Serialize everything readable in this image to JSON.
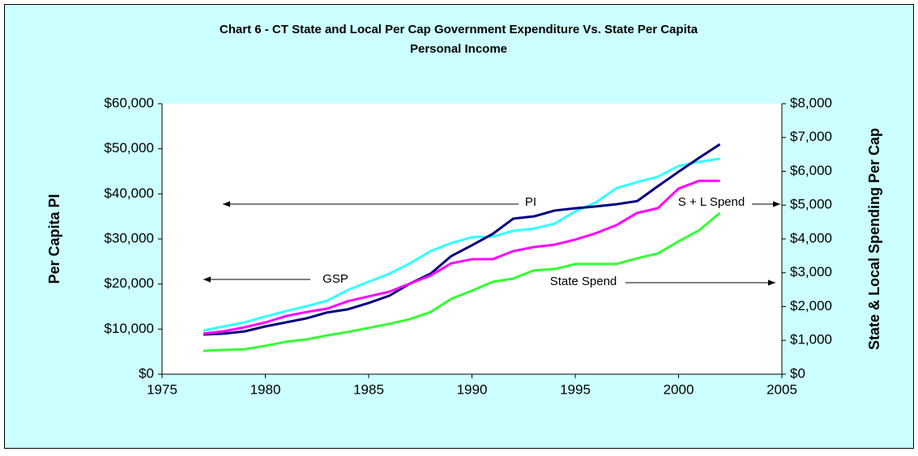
{
  "chart_data": {
    "type": "line",
    "title": [
      "Chart 6 - CT State and Local Per Cap Government Expenditure Vs. State Per Capita",
      "Personal Income"
    ],
    "y_label": "Per Capita PI",
    "y2_label": "State & Local Spending Per Cap",
    "x": [
      1977,
      1978,
      1979,
      1980,
      1981,
      1982,
      1983,
      1984,
      1985,
      1986,
      1987,
      1988,
      1989,
      1990,
      1991,
      1992,
      1993,
      1994,
      1995,
      1996,
      1997,
      1998,
      1999,
      2000,
      2001,
      2002
    ],
    "xlim": [
      1975,
      2005
    ],
    "xticks": [
      1975,
      1980,
      1985,
      1990,
      1995,
      2000,
      2005
    ],
    "ylim": [
      0,
      60000
    ],
    "yticks": [
      {
        "value": 0,
        "label": "$0"
      },
      {
        "value": 10000,
        "label": "$10,000"
      },
      {
        "value": 20000,
        "label": "$20,000"
      },
      {
        "value": 30000,
        "label": "$30,000"
      },
      {
        "value": 40000,
        "label": "$40,000"
      },
      {
        "value": 50000,
        "label": "$50,000"
      },
      {
        "value": 60000,
        "label": "$60,000"
      }
    ],
    "y2lim": [
      0,
      8000
    ],
    "y2ticks": [
      {
        "value": 0,
        "label": "$0"
      },
      {
        "value": 1000,
        "label": "$1,000"
      },
      {
        "value": 2000,
        "label": "$2,000"
      },
      {
        "value": 3000,
        "label": "$3,000"
      },
      {
        "value": 4000,
        "label": "$4,000"
      },
      {
        "value": 5000,
        "label": "$5,000"
      },
      {
        "value": 6000,
        "label": "$6,000"
      },
      {
        "value": 7000,
        "label": "$7,000"
      },
      {
        "value": 8000,
        "label": "$8,000"
      }
    ],
    "grid": false,
    "series": [
      {
        "name": "GSP",
        "color": "#33ffff",
        "axis": "y",
        "values": [
          9700,
          10600,
          11500,
          12800,
          14000,
          15100,
          16300,
          18700,
          20500,
          22300,
          24600,
          27300,
          29100,
          30400,
          30500,
          31800,
          32300,
          33400,
          36100,
          38100,
          41300,
          42600,
          43800,
          46200,
          47100,
          47800
        ]
      },
      {
        "name": "PI",
        "color": "#000080",
        "axis": "y",
        "values": [
          8800,
          9000,
          9500,
          10600,
          11500,
          12400,
          13700,
          14400,
          15800,
          17400,
          20100,
          22300,
          26200,
          28600,
          31100,
          34500,
          35000,
          36300,
          36800,
          37200,
          37700,
          38400,
          41700,
          44900,
          48000,
          51000
        ]
      },
      {
        "name": "S + L Spend",
        "color": "#ff00ff",
        "axis": "y2",
        "values": [
          1200,
          1270,
          1390,
          1530,
          1720,
          1840,
          1940,
          2160,
          2300,
          2440,
          2680,
          2920,
          3280,
          3400,
          3400,
          3640,
          3760,
          3830,
          3980,
          4170,
          4410,
          4770,
          4910,
          5490,
          5720,
          5720
        ]
      },
      {
        "name": "State Spend",
        "color": "#33ff33",
        "axis": "y2",
        "values": [
          690,
          720,
          740,
          840,
          960,
          1030,
          1150,
          1250,
          1370,
          1490,
          1630,
          1840,
          2230,
          2470,
          2730,
          2830,
          3070,
          3110,
          3260,
          3260,
          3260,
          3430,
          3570,
          3930,
          4260,
          4770
        ]
      }
    ]
  }
}
